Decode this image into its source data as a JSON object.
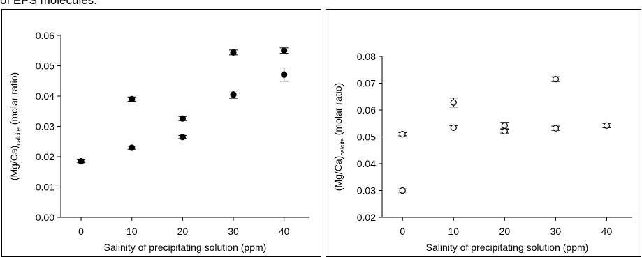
{
  "caption_fragment": "of EPS molecules.",
  "chart_data": [
    {
      "type": "scatter",
      "marker": "filled-circle",
      "xlabel": "Salinity of precipitating solution (ppm)",
      "ylabel_main": "(Mg/Ca)",
      "ylabel_sub": "calcite",
      "ylabel_tail": " (molar ratio)",
      "xlim": [
        -4,
        45
      ],
      "ylim": [
        0.0,
        0.06
      ],
      "xticks": [
        0,
        10,
        20,
        30,
        40
      ],
      "xtick_labels": [
        "0",
        "10",
        "20",
        "30",
        "40"
      ],
      "yticks": [
        0.0,
        0.01,
        0.02,
        0.03,
        0.04,
        0.05,
        0.06
      ],
      "ytick_labels": [
        "0.00",
        "0.01",
        "0.02",
        "0.03",
        "0.04",
        "0.05",
        "0.06"
      ],
      "grid": false,
      "points": [
        {
          "x": 0,
          "y": 0.0185,
          "err": 0.0005
        },
        {
          "x": 10,
          "y": 0.039,
          "err": 0.0007
        },
        {
          "x": 10,
          "y": 0.023,
          "err": 0.0005
        },
        {
          "x": 20,
          "y": 0.0326,
          "err": 0.0007
        },
        {
          "x": 20,
          "y": 0.0265,
          "err": 0.0005
        },
        {
          "x": 30,
          "y": 0.0544,
          "err": 0.0008
        },
        {
          "x": 30,
          "y": 0.0405,
          "err": 0.0012
        },
        {
          "x": 40,
          "y": 0.055,
          "err": 0.0009
        },
        {
          "x": 40,
          "y": 0.0471,
          "err": 0.0022
        }
      ]
    },
    {
      "type": "scatter",
      "marker": "open-circle",
      "xlabel": "Salinity of precipitating solution (ppm)",
      "ylabel_main": "(Mg/Ca)",
      "ylabel_sub": "calcite",
      "ylabel_tail": " (molar ratio)",
      "xlim": [
        -4,
        45
      ],
      "ylim": [
        0.02,
        0.08
      ],
      "xticks": [
        0,
        10,
        20,
        30,
        40
      ],
      "xtick_labels": [
        "0",
        "10",
        "20",
        "30",
        "40"
      ],
      "yticks": [
        0.02,
        0.03,
        0.04,
        0.05,
        0.06,
        0.07,
        0.08
      ],
      "ytick_labels": [
        "0.02",
        "0.03",
        "0.04",
        "0.05",
        "0.06",
        "0.07",
        "0.08"
      ],
      "grid": false,
      "points": [
        {
          "x": 0,
          "y": 0.051,
          "err": 0.0006
        },
        {
          "x": 0,
          "y": 0.03,
          "err": 0.0006
        },
        {
          "x": 10,
          "y": 0.0628,
          "err": 0.0017
        },
        {
          "x": 10,
          "y": 0.0534,
          "err": 0.0008
        },
        {
          "x": 20,
          "y": 0.0542,
          "err": 0.0012
        },
        {
          "x": 20,
          "y": 0.0521,
          "err": 0.0007
        },
        {
          "x": 30,
          "y": 0.0715,
          "err": 0.0009
        },
        {
          "x": 30,
          "y": 0.0532,
          "err": 0.0008
        },
        {
          "x": 40,
          "y": 0.0542,
          "err": 0.0008
        }
      ]
    }
  ]
}
